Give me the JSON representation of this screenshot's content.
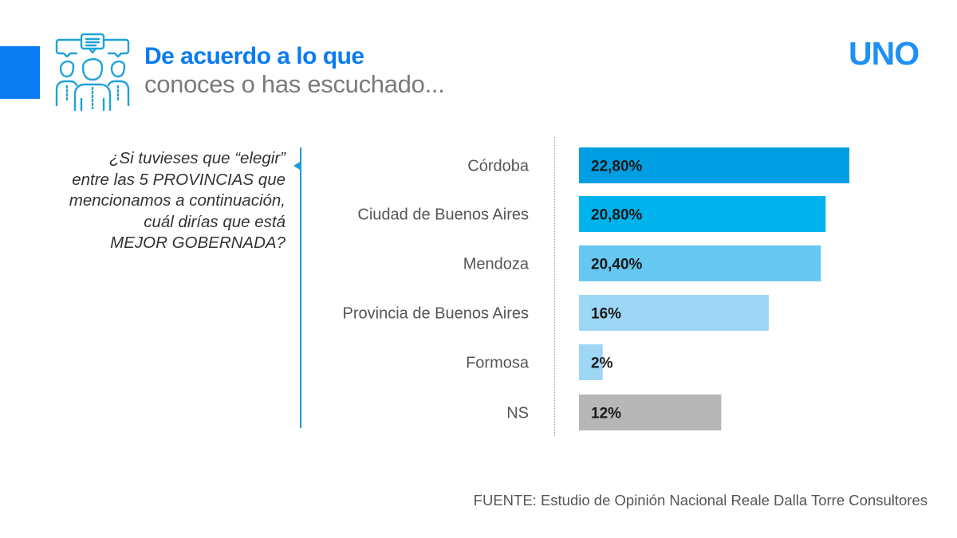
{
  "header": {
    "title": "De acuerdo a lo que",
    "subtitle": "conoces o has escuchado...",
    "icon": "people-discussion-icon",
    "accent_color": "#0a7cf2"
  },
  "logo": {
    "text": "UNO",
    "color": "#1e90f5"
  },
  "question": {
    "lines": [
      "¿Si tuvieses que “elegir”",
      "entre las 5 PROVINCIAS que",
      "mencionamos a continuación,",
      "cuál dirías que está",
      "MEJOR GOBERNADA?"
    ]
  },
  "source": "FUENTE: Estudio de Opinión Nacional Reale Dalla Torre Consultores",
  "chart_data": {
    "type": "bar",
    "orientation": "horizontal",
    "title": "",
    "xlabel": "",
    "ylabel": "",
    "grid": false,
    "xlim": [
      0,
      25
    ],
    "categories": [
      "Córdoba",
      "Ciudad de Buenos Aires",
      "Mendoza",
      "Provincia de Buenos Aires",
      "Formosa",
      "NS"
    ],
    "values": [
      22.8,
      20.8,
      20.4,
      16,
      2,
      12
    ],
    "value_labels": [
      "22,80%",
      "20,80%",
      "20,40%",
      "16%",
      "2%",
      "12%"
    ],
    "colors": [
      "#009fe3",
      "#00b3ec",
      "#66c7f1",
      "#9dd7f5",
      "#9dd7f5",
      "#b7b7b7"
    ]
  }
}
